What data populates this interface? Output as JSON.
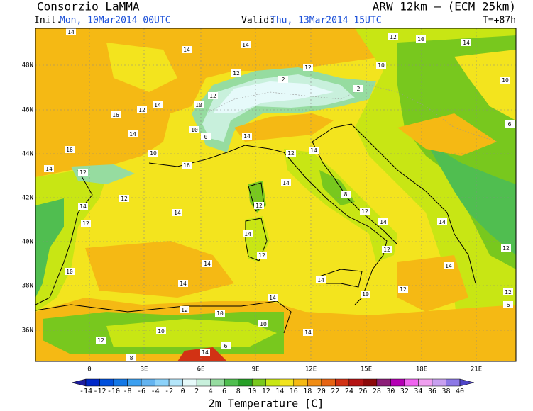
{
  "header": {
    "org": "Consorzio LaMMA",
    "model": "ARW 12km – (ECM 25km)",
    "init_label": "Init.:",
    "init": "Mon, 10Mar2014 00UTC",
    "valid_label": "Valid:",
    "valid": "Thu, 13Mar2014 15UTC",
    "lead": "T=+87h"
  },
  "map": {
    "lat_labels": [
      "48N",
      "46N",
      "44N",
      "42N",
      "40N",
      "38N",
      "36N"
    ],
    "lon_labels": [
      "0",
      "3E",
      "6E",
      "9E",
      "12E",
      "15E",
      "18E",
      "21E"
    ],
    "contour_labels": [
      "14",
      "14",
      "14",
      "12",
      "10",
      "14",
      "10",
      "12",
      "12",
      "2",
      "2",
      "12",
      "10",
      "0",
      "10",
      "12",
      "16",
      "14",
      "14",
      "16",
      "10",
      "14",
      "12",
      "14",
      "16",
      "12",
      "14",
      "12",
      "14",
      "12",
      "14",
      "12",
      "14",
      "8",
      "12",
      "14",
      "14",
      "14",
      "12",
      "14",
      "10",
      "14",
      "12",
      "14",
      "14",
      "10",
      "14",
      "12",
      "12",
      "10",
      "10",
      "10",
      "12",
      "14",
      "6",
      "8",
      "14",
      "6",
      "12",
      "12",
      "10",
      "6"
    ]
  },
  "colorbar": {
    "colors": [
      "#1e1e9e",
      "#0028c8",
      "#0050dc",
      "#1478e6",
      "#3ca0f0",
      "#64b4f0",
      "#8cd2fa",
      "#b4e6fa",
      "#e6fafa",
      "#c8f0dc",
      "#96dca0",
      "#50be50",
      "#28a028",
      "#78c81e",
      "#c8e614",
      "#f3e41e",
      "#f5b914",
      "#f08c14",
      "#e66414",
      "#d23214",
      "#b41414",
      "#8c0a0a",
      "#8c1e78",
      "#b400b4",
      "#f064f0",
      "#f0a0f0",
      "#c8a0f0",
      "#8c78e6",
      "#5046c8"
    ],
    "ticks": [
      -14,
      -12,
      -10,
      -8,
      -6,
      -4,
      -2,
      0,
      2,
      4,
      6,
      8,
      10,
      12,
      14,
      16,
      18,
      20,
      22,
      24,
      26,
      28,
      30,
      32,
      34,
      36,
      38,
      40
    ],
    "title": "2m Temperature [C]"
  }
}
